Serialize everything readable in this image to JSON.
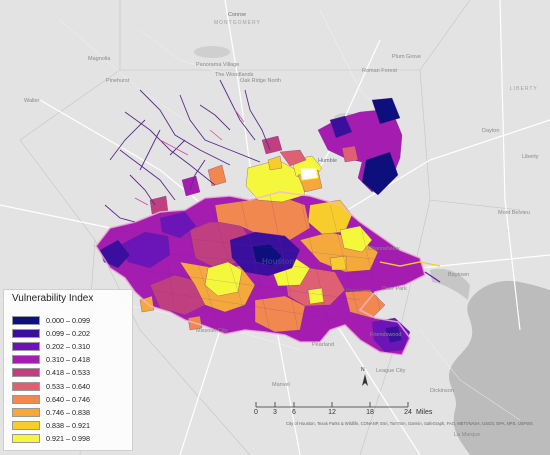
{
  "map": {
    "places": [
      {
        "id": "conroe",
        "label": "Conroe"
      },
      {
        "id": "montgomery",
        "label": "MONTGOMERY"
      },
      {
        "id": "plum-grove",
        "label": "Plum Grove"
      },
      {
        "id": "magnolia",
        "label": "Magnolia"
      },
      {
        "id": "panorama",
        "label": "Panorama Village"
      },
      {
        "id": "pinehurst",
        "label": "Pinehurst"
      },
      {
        "id": "the-woodlands",
        "label": "The Woodlands"
      },
      {
        "id": "oak-ridge",
        "label": "Oak Ridge North"
      },
      {
        "id": "roman-forest",
        "label": "Roman Forest"
      },
      {
        "id": "liberty-county",
        "label": "LIBERTY"
      },
      {
        "id": "waller",
        "label": "Waller"
      },
      {
        "id": "dayton",
        "label": "Dayton"
      },
      {
        "id": "liberty",
        "label": "Liberty"
      },
      {
        "id": "humble",
        "label": "Humble"
      },
      {
        "id": "mont-belvieu",
        "label": "Mont Belvieu"
      },
      {
        "id": "channelview",
        "label": "Channelview"
      },
      {
        "id": "houston",
        "label": "Houston"
      },
      {
        "id": "baytown",
        "label": "Baytown"
      },
      {
        "id": "pasadena",
        "label": "Pasadena"
      },
      {
        "id": "deer-park",
        "label": "Deer Park"
      },
      {
        "id": "missouri-city",
        "label": "Missouri City"
      },
      {
        "id": "pearland",
        "label": "Pearland"
      },
      {
        "id": "friendswood",
        "label": "Friendswood"
      },
      {
        "id": "league-city",
        "label": "League City"
      },
      {
        "id": "manvel",
        "label": "Manvel"
      },
      {
        "id": "dickinson",
        "label": "Dickinson"
      },
      {
        "id": "la-marque",
        "label": "La Marque"
      }
    ],
    "north_label": "N"
  },
  "legend": {
    "title": "Vulnerability Index",
    "classes": [
      {
        "label": "0.000 – 0.099",
        "color": "#0d0f7d"
      },
      {
        "label": "0.099 – 0.202",
        "color": "#3b0f9d"
      },
      {
        "label": "0.202 – 0.310",
        "color": "#6b14b8"
      },
      {
        "label": "0.310 – 0.418",
        "color": "#a51cb0"
      },
      {
        "label": "0.418 – 0.533",
        "color": "#c0407f"
      },
      {
        "label": "0.533 – 0.640",
        "color": "#df5f73"
      },
      {
        "label": "0.640 – 0.746",
        "color": "#f0884f"
      },
      {
        "label": "0.746 – 0.838",
        "color": "#f5a93c"
      },
      {
        "label": "0.838 – 0.921",
        "color": "#f7cd2b"
      },
      {
        "label": "0.921 – 0.998",
        "color": "#f4f73c"
      }
    ]
  },
  "scalebar": {
    "ticks": [
      "0",
      "3",
      "6",
      "12",
      "18",
      "24"
    ],
    "unit": "Miles"
  },
  "attribution": "City of Houston, Texas Parks & Wildlife, CONANP, Esri, TomTom, Garmin, SafeGraph, FAO, METI/NASA, USGS, EPA, NPS, USFWS"
}
